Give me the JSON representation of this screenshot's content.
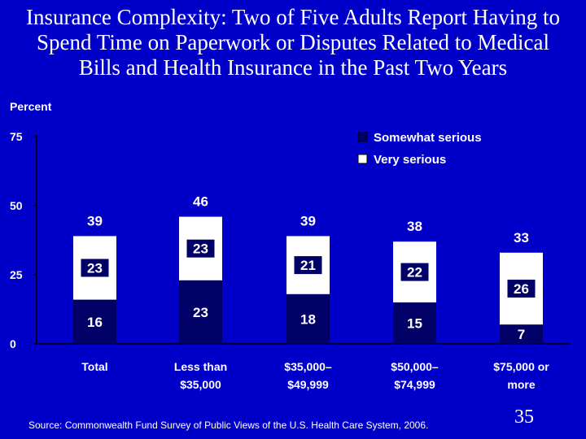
{
  "slide": {
    "title_lines": [
      "Insurance Complexity: Two of Five Adults Report Having to",
      "Spend Time on Paperwork or Disputes Related to Medical",
      "Bills and Health Insurance in the Past Two Years"
    ],
    "source": "Source: Commonwealth Fund Survey of Public Views of the U.S. Health Care System, 2006.",
    "page_number": "35"
  },
  "colors": {
    "background": "#0000c8",
    "very_serious": "#000066",
    "somewhat_serious": "#ffffff",
    "text": "#ffffff",
    "axis": "#000000"
  },
  "chart_data": {
    "type": "bar",
    "stacked": true,
    "ylabel": "Percent",
    "ylim": [
      0,
      75
    ],
    "yticks": [
      0,
      25,
      50,
      75
    ],
    "categories": [
      [
        "Total"
      ],
      [
        "Less than",
        "$35,000"
      ],
      [
        "$35,000–",
        "$49,999"
      ],
      [
        "$50,000–",
        "$74,999"
      ],
      [
        "$75,000 or",
        "more"
      ]
    ],
    "series": [
      {
        "name": "Very serious",
        "values": [
          16,
          23,
          18,
          15,
          7
        ]
      },
      {
        "name": "Somewhat serious",
        "values": [
          23,
          23,
          21,
          22,
          26
        ]
      }
    ],
    "totals": [
      39,
      46,
      39,
      38,
      33
    ],
    "legend": {
      "position": "top-right",
      "order": [
        "Somewhat serious",
        "Very serious"
      ]
    }
  }
}
